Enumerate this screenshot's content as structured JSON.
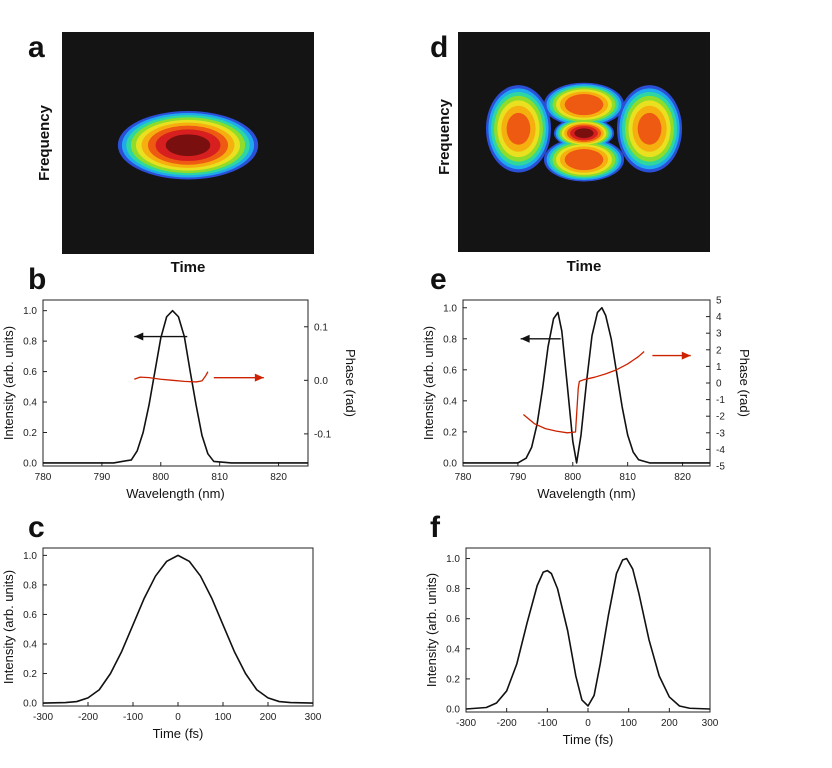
{
  "chart_data": [
    {
      "panel": "a",
      "type": "heatmap",
      "xlabel": "Time",
      "ylabel": "Frequency",
      "blobs": [
        {
          "cx": 0.5,
          "cy": 0.51,
          "rx": 0.28,
          "ry": 0.155,
          "peak": 1.0
        }
      ]
    },
    {
      "panel": "b",
      "type": "line",
      "xlabel": "Wavelength (nm)",
      "ylabel": "Intensity (arb. units)",
      "y2label": "Phase (rad)",
      "xlim": [
        780,
        825
      ],
      "ylim": [
        -0.02,
        1.07
      ],
      "y2lim": [
        -0.16,
        0.15
      ],
      "xticks": [
        780,
        790,
        800,
        810,
        820
      ],
      "yticks": [
        0.0,
        0.2,
        0.4,
        0.6,
        0.8,
        1.0
      ],
      "y2ticks": [
        -0.1,
        0.0,
        0.1
      ],
      "series": [
        {
          "axis": "left",
          "color": "#111111",
          "x": [
            780,
            792,
            795,
            796,
            797,
            798,
            799,
            800,
            801,
            802,
            803,
            804,
            805,
            806,
            807,
            808,
            809,
            812,
            825
          ],
          "y": [
            0.0,
            0.0,
            0.02,
            0.08,
            0.2,
            0.38,
            0.6,
            0.82,
            0.96,
            1.0,
            0.96,
            0.83,
            0.6,
            0.38,
            0.18,
            0.06,
            0.01,
            0.0,
            0.0
          ]
        },
        {
          "axis": "right",
          "color": "#cc2200",
          "x": [
            795.5,
            796.5,
            798,
            800,
            802,
            804,
            806,
            807,
            807.6,
            808
          ],
          "y": [
            0.002,
            0.006,
            0.005,
            0.002,
            0.0,
            -0.002,
            -0.003,
            -0.001,
            0.008,
            0.016
          ]
        }
      ],
      "arrows": [
        {
          "color": "#111111",
          "from": [
            804.5,
            0.83
          ],
          "to": [
            795.5,
            0.83
          ]
        },
        {
          "color": "#cc2200",
          "from": [
            809,
            0.005
          ],
          "to": [
            817.5,
            0.005
          ],
          "axis": "right"
        }
      ]
    },
    {
      "panel": "c",
      "type": "line",
      "xlabel": "Time (fs)",
      "ylabel": "Intensity (arb. units)",
      "xlim": [
        -300,
        300
      ],
      "ylim": [
        -0.02,
        1.05
      ],
      "xticks": [
        -300,
        -200,
        -100,
        0,
        100,
        200,
        300
      ],
      "yticks": [
        0.0,
        0.2,
        0.4,
        0.6,
        0.8,
        1.0
      ],
      "series": [
        {
          "color": "#111111",
          "x": [
            -300,
            -250,
            -225,
            -200,
            -175,
            -150,
            -125,
            -100,
            -75,
            -50,
            -25,
            0,
            25,
            50,
            75,
            100,
            125,
            150,
            175,
            200,
            225,
            250,
            300
          ],
          "y": [
            0.0,
            0.003,
            0.01,
            0.035,
            0.09,
            0.2,
            0.35,
            0.53,
            0.71,
            0.86,
            0.96,
            1.0,
            0.96,
            0.86,
            0.71,
            0.53,
            0.35,
            0.2,
            0.09,
            0.035,
            0.01,
            0.003,
            0.0
          ]
        }
      ]
    },
    {
      "panel": "d",
      "type": "heatmap",
      "xlabel": "Time",
      "ylabel": "Frequency",
      "blobs": [
        {
          "cx": 0.24,
          "cy": 0.44,
          "rx": 0.13,
          "ry": 0.2,
          "peak": 0.78
        },
        {
          "cx": 0.76,
          "cy": 0.44,
          "rx": 0.13,
          "ry": 0.2,
          "peak": 0.78
        },
        {
          "cx": 0.5,
          "cy": 0.33,
          "rx": 0.16,
          "ry": 0.1,
          "peak": 0.88
        },
        {
          "cx": 0.5,
          "cy": 0.58,
          "rx": 0.16,
          "ry": 0.1,
          "peak": 0.88
        },
        {
          "cx": 0.5,
          "cy": 0.46,
          "rx": 0.12,
          "ry": 0.07,
          "peak": 1.0
        }
      ]
    },
    {
      "panel": "e",
      "type": "line",
      "xlabel": "Wavelength (nm)",
      "ylabel": "Intensity (arb. units)",
      "y2label": "Phase (rad)",
      "xlim": [
        780,
        825
      ],
      "ylim": [
        -0.02,
        1.05
      ],
      "y2lim": [
        -5,
        5
      ],
      "xticks": [
        780,
        790,
        800,
        810,
        820
      ],
      "yticks": [
        0.0,
        0.2,
        0.4,
        0.6,
        0.8,
        1.0
      ],
      "y2ticks": [
        -5,
        -4,
        -3,
        -2,
        -1,
        0,
        1,
        2,
        3,
        4,
        5
      ],
      "series": [
        {
          "axis": "left",
          "color": "#111111",
          "x": [
            780,
            790,
            791.5,
            792.5,
            793.5,
            794.5,
            795.5,
            796.5,
            797.3,
            798,
            799,
            800,
            800.7,
            801.5,
            802.5,
            803.5,
            804.5,
            805.3,
            806,
            807,
            808,
            809,
            810,
            811,
            812,
            814,
            825
          ],
          "y": [
            0.0,
            0.0,
            0.03,
            0.1,
            0.25,
            0.48,
            0.75,
            0.93,
            0.97,
            0.85,
            0.5,
            0.14,
            0.0,
            0.18,
            0.52,
            0.82,
            0.97,
            1.0,
            0.95,
            0.8,
            0.58,
            0.36,
            0.18,
            0.07,
            0.02,
            0.0,
            0.0
          ]
        },
        {
          "axis": "right",
          "color": "#cc2200",
          "x": [
            791,
            793,
            795,
            797,
            799,
            800.5,
            801.0,
            801.2,
            802,
            804,
            806,
            808,
            810,
            812,
            813
          ],
          "y": [
            -1.9,
            -2.45,
            -2.75,
            -2.9,
            -3.0,
            -2.95,
            -0.3,
            0.1,
            0.2,
            0.35,
            0.55,
            0.8,
            1.15,
            1.6,
            1.9
          ]
        }
      ],
      "arrows": [
        {
          "color": "#111111",
          "from": [
            797.8,
            0.8
          ],
          "to": [
            790.5,
            0.8
          ]
        },
        {
          "color": "#cc2200",
          "from": [
            814.5,
            1.65
          ],
          "to": [
            821.5,
            1.65
          ],
          "axis": "right"
        }
      ]
    },
    {
      "panel": "f",
      "type": "line",
      "xlabel": "Time (fs)",
      "ylabel": "Intensity (arb. units)",
      "xlim": [
        -300,
        300
      ],
      "ylim": [
        -0.02,
        1.07
      ],
      "xticks": [
        -300,
        -200,
        -100,
        0,
        100,
        200,
        300
      ],
      "yticks": [
        0.0,
        0.2,
        0.4,
        0.6,
        0.8,
        1.0
      ],
      "series": [
        {
          "color": "#111111",
          "x": [
            -300,
            -250,
            -225,
            -200,
            -175,
            -150,
            -125,
            -110,
            -100,
            -90,
            -75,
            -50,
            -30,
            -15,
            0,
            15,
            30,
            50,
            70,
            85,
            95,
            110,
            125,
            150,
            175,
            200,
            225,
            250,
            300
          ],
          "y": [
            0.0,
            0.01,
            0.04,
            0.12,
            0.3,
            0.57,
            0.82,
            0.91,
            0.92,
            0.9,
            0.8,
            0.52,
            0.22,
            0.06,
            0.02,
            0.09,
            0.3,
            0.62,
            0.9,
            0.99,
            1.0,
            0.93,
            0.77,
            0.46,
            0.22,
            0.08,
            0.02,
            0.005,
            0.0
          ]
        }
      ]
    }
  ]
}
